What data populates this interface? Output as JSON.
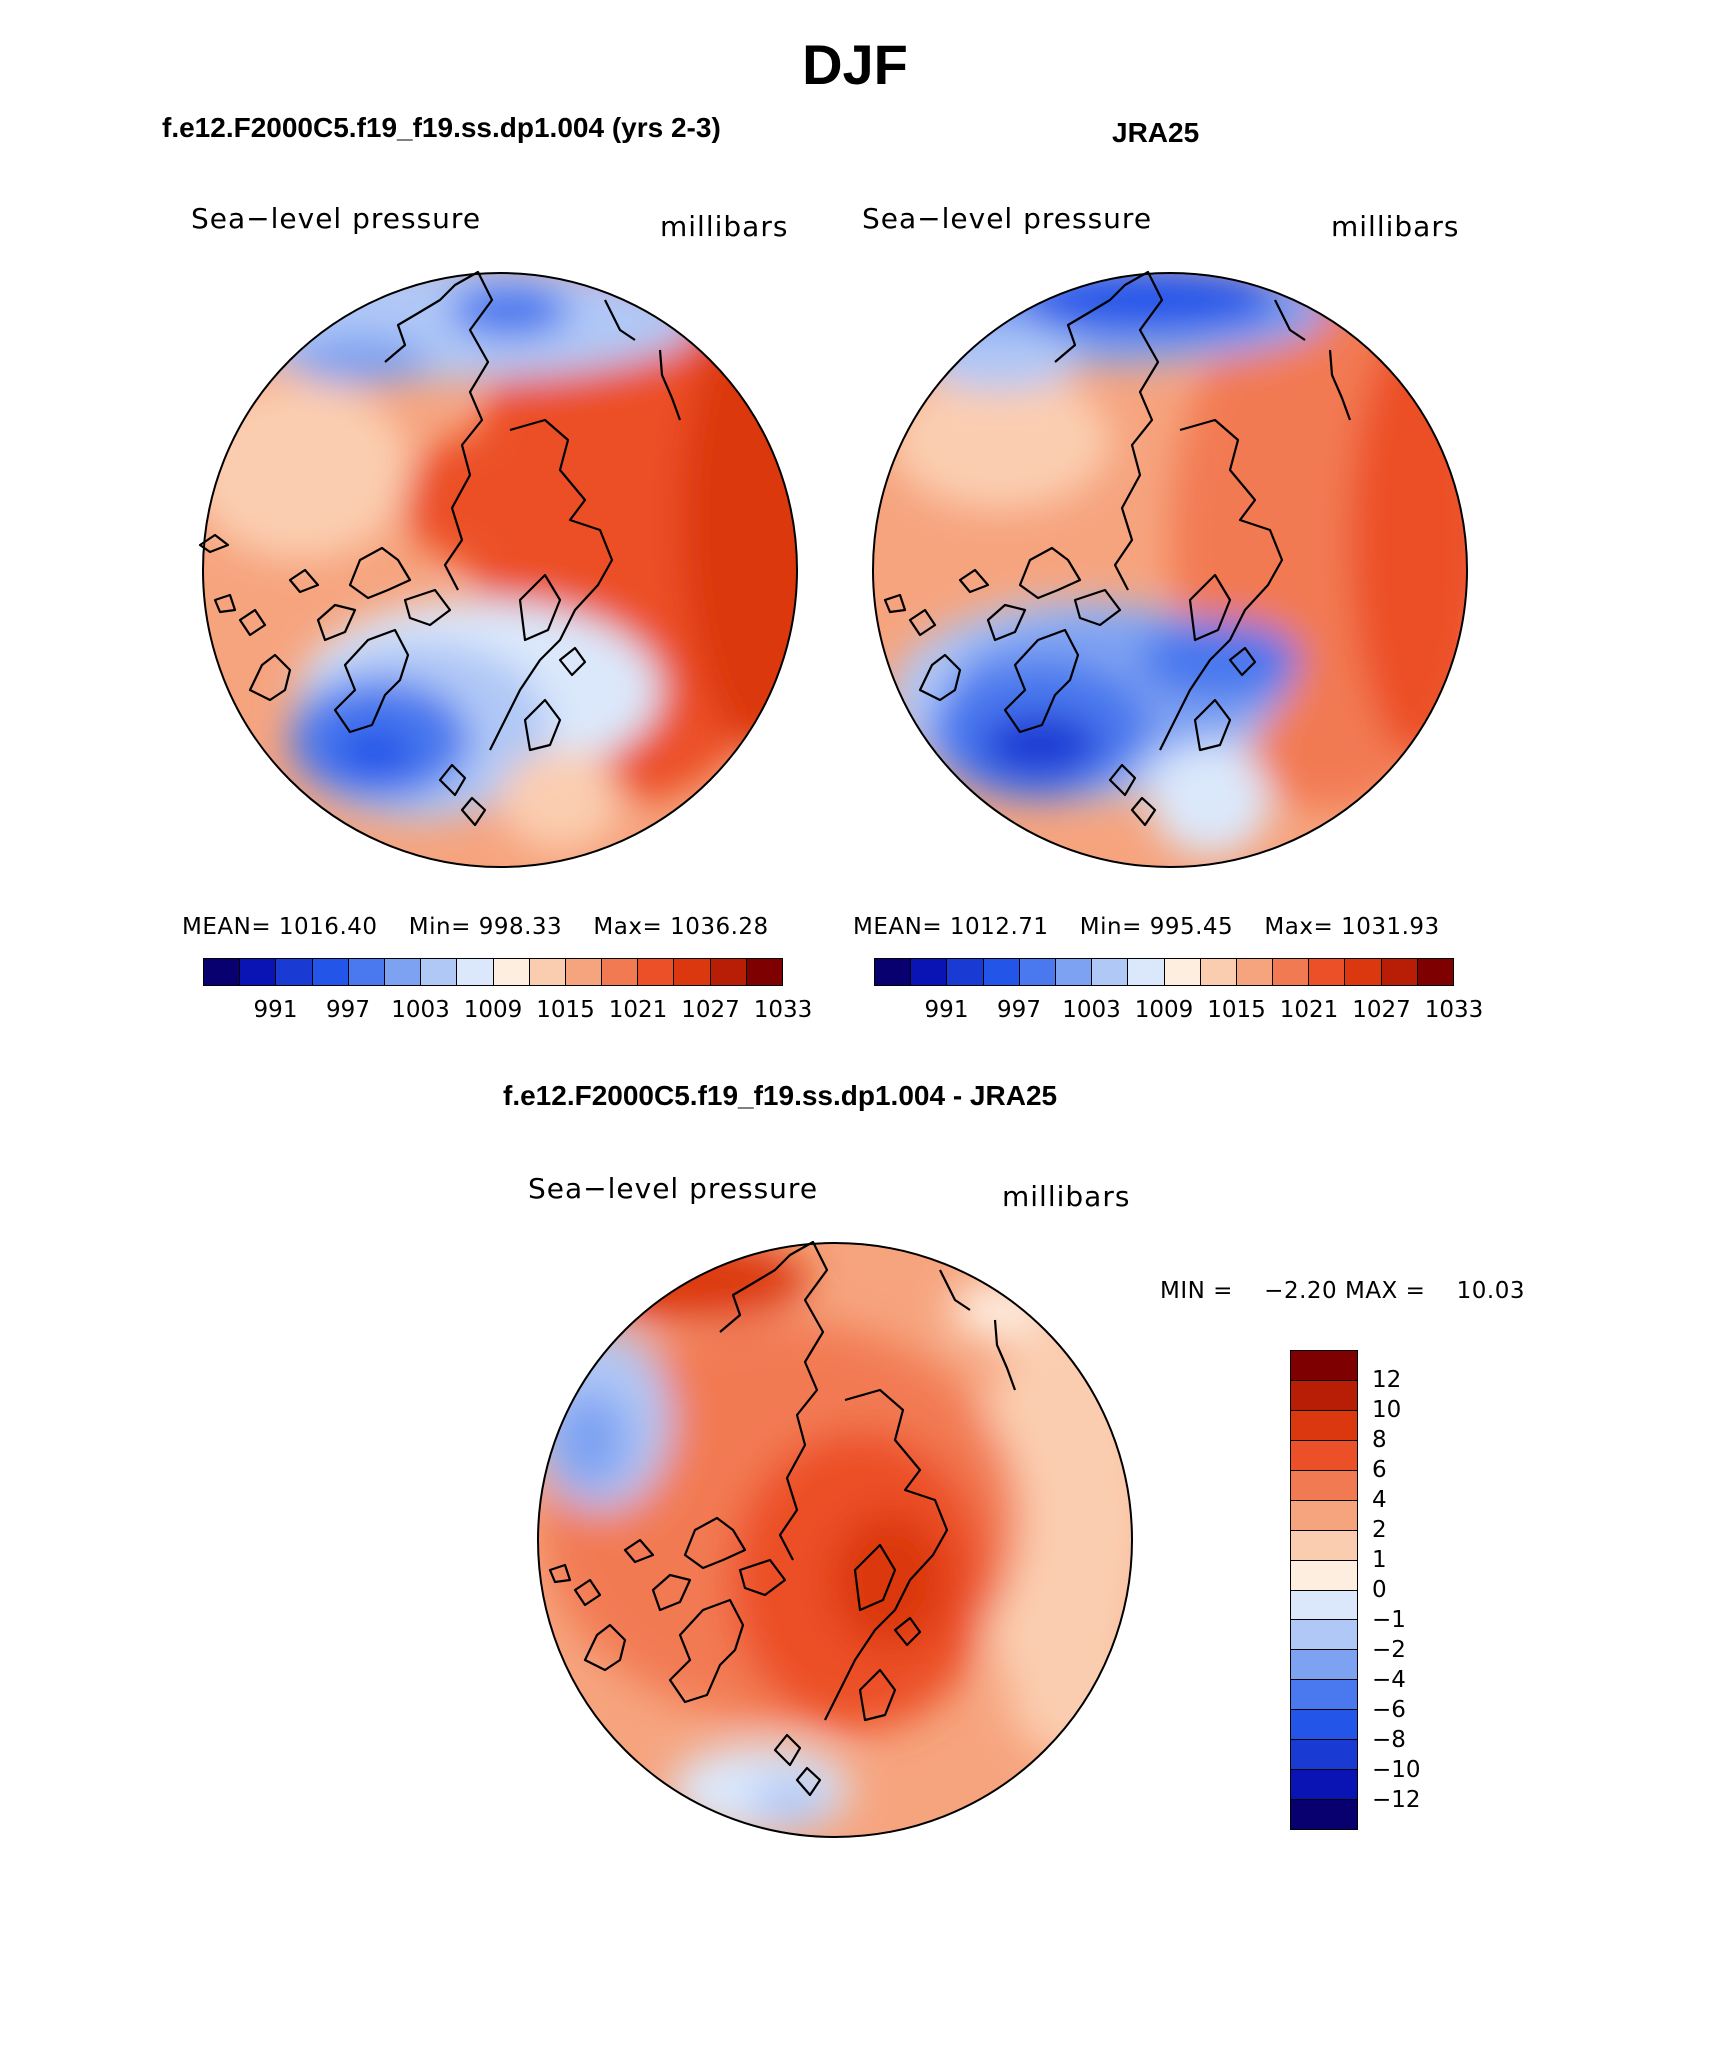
{
  "main_title": "DJF",
  "panels": [
    {
      "title": "f.e12.F2000C5.f19_f19.ss.dp1.004 (yrs 2-3)",
      "variable": "Sea−level pressure",
      "units": "millibars",
      "stats": {
        "mean_label": "MEAN=",
        "mean": "1016.40",
        "min_label": "Min=",
        "min": "998.33",
        "max_label": "Max=",
        "max": "1036.28"
      }
    },
    {
      "title": "JRA25",
      "variable": "Sea−level pressure",
      "units": "millibars",
      "stats": {
        "mean_label": "MEAN=",
        "mean": "1012.71",
        "min_label": "Min=",
        "min": "995.45",
        "max_label": "Max=",
        "max": "1031.93"
      }
    }
  ],
  "diff_panel": {
    "title": "f.e12.F2000C5.f19_f19.ss.dp1.004 - JRA25",
    "variable": "Sea−level pressure",
    "units": "millibars",
    "min_label": "MIN =",
    "min": "−2.20",
    "max_label": "MAX =",
    "max": "10.03"
  },
  "abs_colorbar": {
    "colors": [
      "#08006e",
      "#0a14b4",
      "#1a3ad4",
      "#2255e8",
      "#4a78ee",
      "#7ea2f2",
      "#b0c8f6",
      "#dbe8fb",
      "#fdeee0",
      "#fbcdb0",
      "#f6a47e",
      "#f27a52",
      "#ec5028",
      "#dc3810",
      "#b81e06",
      "#7e0000"
    ],
    "labels": [
      "991",
      "997",
      "1003",
      "1009",
      "1015",
      "1021",
      "1027",
      "1033"
    ]
  },
  "diff_colorbar": {
    "colors": [
      "#7e0000",
      "#b81e06",
      "#dc3810",
      "#ec5028",
      "#f27a52",
      "#f6a47e",
      "#fbcdb0",
      "#fdeee0",
      "#dbe8fb",
      "#b0c8f6",
      "#7ea2f2",
      "#4a78ee",
      "#2255e8",
      "#1a3ad4",
      "#0a14b4",
      "#08006e"
    ],
    "labels": [
      "12",
      "10",
      "8",
      "6",
      "4",
      "2",
      "1",
      "0",
      "−1",
      "−2",
      "−4",
      "−6",
      "−8",
      "−10",
      "−12"
    ]
  }
}
